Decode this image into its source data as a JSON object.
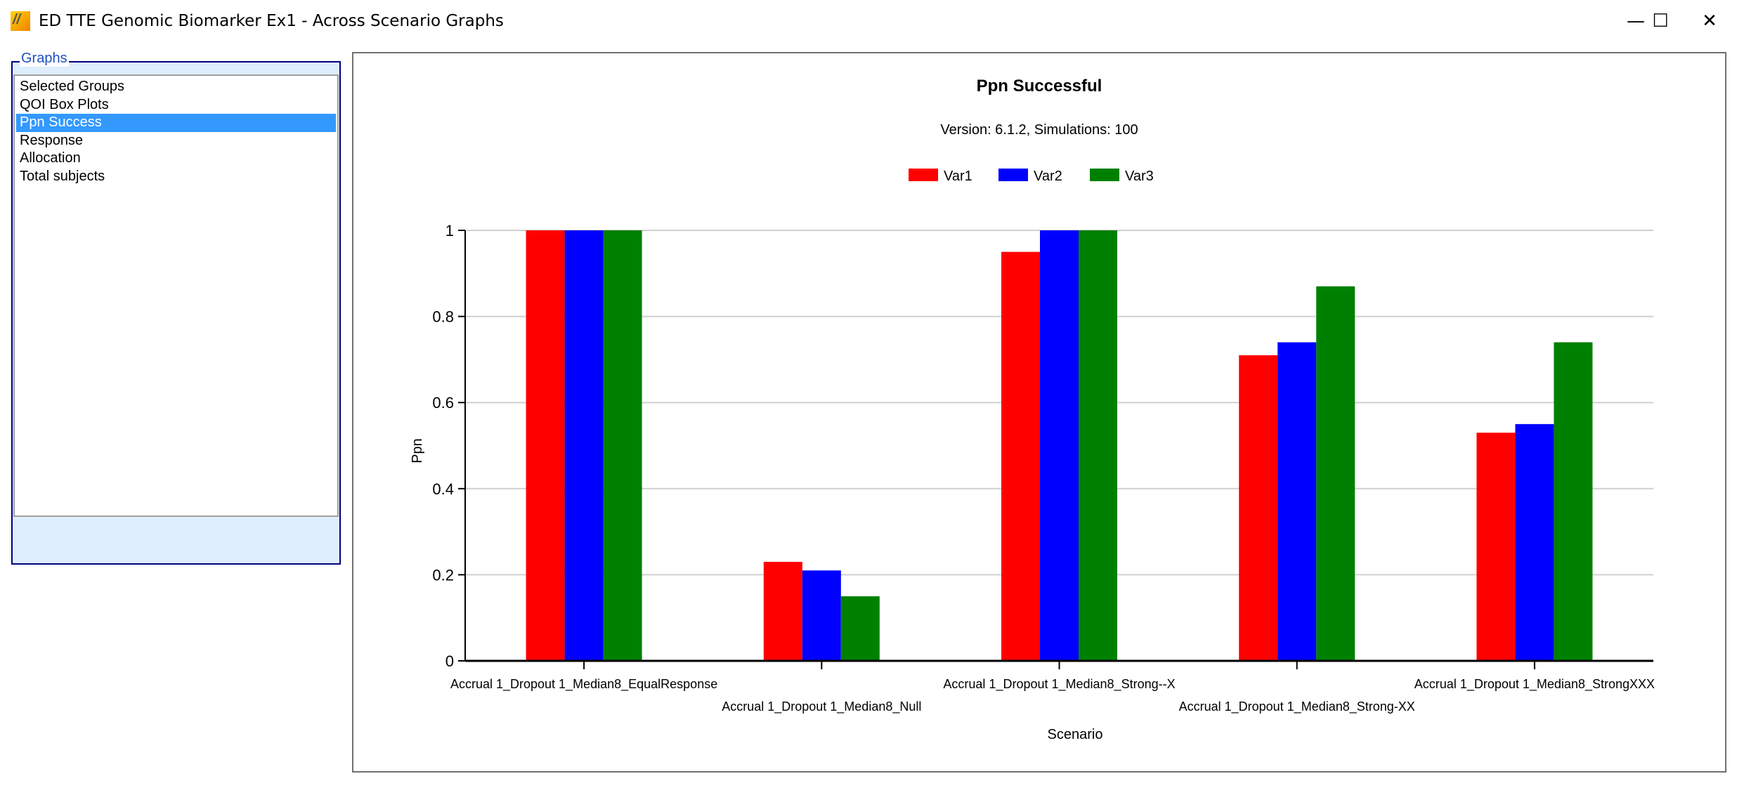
{
  "window": {
    "title": "ED TTE Genomic Biomarker Ex1 - Across Scenario Graphs",
    "minimize_icon": "minimize-icon",
    "maximize_icon": "maximize-icon",
    "close_icon": "close-icon",
    "app_icon": "app-logo-icon"
  },
  "graphs_panel": {
    "label": "Graphs",
    "items": [
      {
        "label": "Selected Groups",
        "selected": false
      },
      {
        "label": "QOI Box Plots",
        "selected": false
      },
      {
        "label": "Ppn Success",
        "selected": true
      },
      {
        "label": "Response",
        "selected": false
      },
      {
        "label": "Allocation",
        "selected": false
      },
      {
        "label": "Total subjects",
        "selected": false
      }
    ]
  },
  "chart_data": {
    "type": "bar",
    "title": "Ppn Successful",
    "subtitle": "Version: 6.1.2, Simulations: 100",
    "xlabel": "Scenario",
    "ylabel": "Ppn",
    "ylim": [
      0,
      1
    ],
    "yticks": [
      "0",
      "0.2",
      "0.4",
      "0.6",
      "0.8",
      "1"
    ],
    "grid": true,
    "legend_position": "top",
    "categories": [
      "Accrual 1_Dropout 1_Median8_EqualResponse",
      "Accrual 1_Dropout 1_Median8_Null",
      "Accrual 1_Dropout 1_Median8_Strong--X",
      "Accrual 1_Dropout 1_Median8_Strong-XX",
      "Accrual 1_Dropout 1_Median8_StrongXXX"
    ],
    "series": [
      {
        "name": "Var1",
        "color": "#ff0000",
        "values": [
          1,
          0.23,
          0.95,
          0.71,
          0.53
        ]
      },
      {
        "name": "Var2",
        "color": "#0000ff",
        "values": [
          1,
          0.21,
          1,
          0.74,
          0.55
        ]
      },
      {
        "name": "Var3",
        "color": "#008000",
        "values": [
          1,
          0.15,
          1,
          0.87,
          0.74
        ]
      }
    ]
  }
}
